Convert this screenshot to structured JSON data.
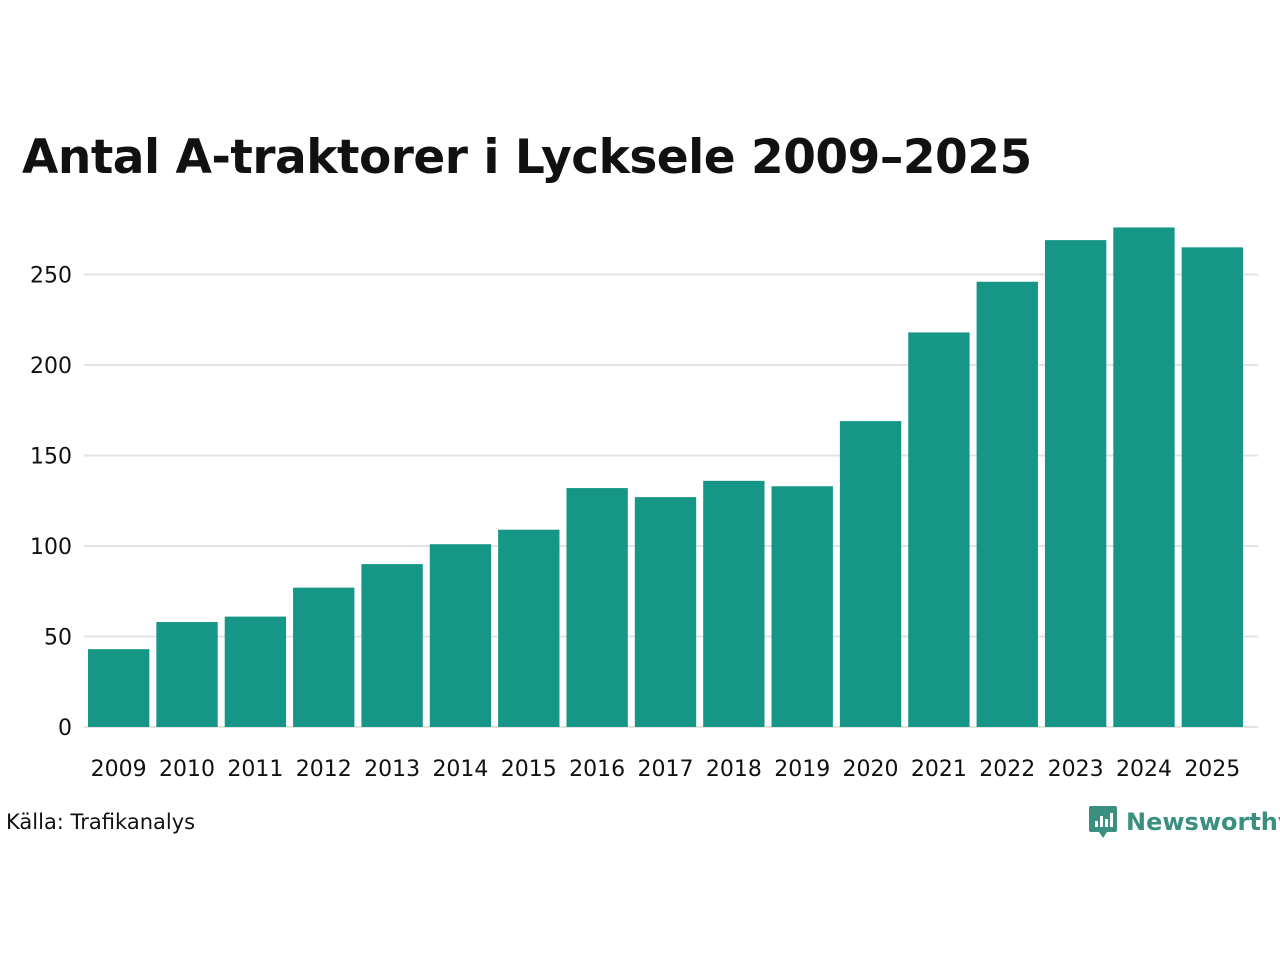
{
  "chart_data": {
    "type": "bar",
    "title": "Antal A-traktorer i Lycksele 2009–2025",
    "categories": [
      "2009",
      "2010",
      "2011",
      "2012",
      "2013",
      "2014",
      "2015",
      "2016",
      "2017",
      "2018",
      "2019",
      "2020",
      "2021",
      "2022",
      "2023",
      "2024",
      "2025"
    ],
    "values": [
      43,
      58,
      61,
      77,
      90,
      101,
      109,
      132,
      127,
      136,
      133,
      169,
      218,
      246,
      269,
      276,
      265
    ],
    "yticks": [
      0,
      50,
      100,
      150,
      200,
      250
    ],
    "ylim": [
      0,
      280
    ],
    "xlabel": "",
    "ylabel": "",
    "grid": true,
    "bar_color": "#169687",
    "grid_color": "#e3e3e3"
  },
  "footer": {
    "source": "Källa: Trafikanalys",
    "brand": "Newsworthy",
    "brand_icon": "newsworthy-logo-icon",
    "brand_color": "#3a8f80"
  }
}
